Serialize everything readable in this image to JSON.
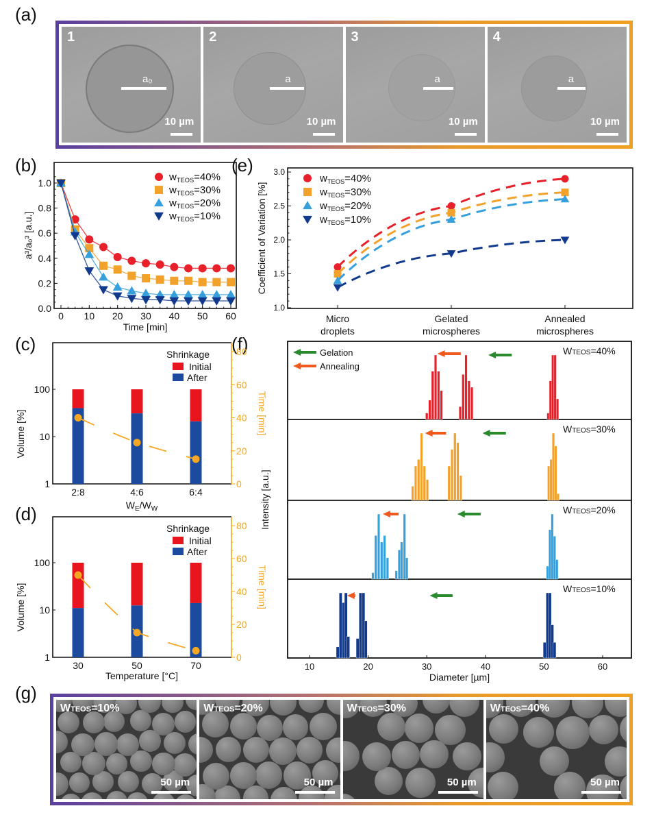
{
  "figure": {
    "panel_labels": {
      "a": "(a)",
      "b": "(b)",
      "c": "(c)",
      "d": "(d)",
      "e": "(e)",
      "f": "(f)",
      "g": "(g)"
    }
  },
  "panel_a": {
    "images": [
      {
        "index": "1",
        "radius_label": "a₀",
        "scale_label": "10 µm"
      },
      {
        "index": "2",
        "radius_label": "a",
        "scale_label": "10 µm"
      },
      {
        "index": "3",
        "radius_label": "a",
        "scale_label": "10 µm"
      },
      {
        "index": "4",
        "radius_label": "a",
        "scale_label": "10 µm"
      }
    ]
  },
  "panel_g": {
    "images": [
      {
        "label_w": "W",
        "label_sub": "TEOS",
        "label_val": "=10%",
        "scale_label": "50 µm"
      },
      {
        "label_w": "W",
        "label_sub": "TEOS",
        "label_val": "=20%",
        "scale_label": "50 µm"
      },
      {
        "label_w": "W",
        "label_sub": "TEOS",
        "label_val": "=30%",
        "scale_label": "50 µm"
      },
      {
        "label_w": "W",
        "label_sub": "TEOS",
        "label_val": "=40%",
        "scale_label": "50 µm"
      }
    ]
  },
  "colors": {
    "w40": "#e8202a",
    "w30": "#f2a22a",
    "w20": "#36a0dc",
    "w10": "#123a8c",
    "initial": "#e8141e",
    "after": "#1b4a9e",
    "time": "#f5a623",
    "gelation_arrow": "#2a8a2e",
    "annealing_arrow": "#f05a1e"
  },
  "chart_data": [
    {
      "id": "b",
      "type": "scatter",
      "title": "",
      "xlabel": "Time [min]",
      "ylabel": "a³/a₀³ [a.u.]",
      "xlim": [
        -2,
        62
      ],
      "ylim": [
        0,
        1.1
      ],
      "xticks": [
        0,
        10,
        20,
        30,
        40,
        50,
        60
      ],
      "yticks": [
        "0.0",
        "0.2",
        "0.4",
        "0.6",
        "0.8",
        "1.0"
      ],
      "legend_position": "top-right",
      "x": [
        0,
        5,
        10,
        15,
        20,
        25,
        30,
        35,
        40,
        45,
        50,
        55,
        60
      ],
      "series": [
        {
          "name": "W_TEOS=40%",
          "name_w": "w",
          "name_sub": "TEOS",
          "name_val": "=40%",
          "marker": "circle",
          "color_key": "w40",
          "values": [
            1.0,
            0.71,
            0.55,
            0.49,
            0.41,
            0.38,
            0.36,
            0.35,
            0.33,
            0.32,
            0.32,
            0.32,
            0.32
          ]
        },
        {
          "name": "W_TEOS=30%",
          "name_w": "w",
          "name_sub": "TEOS",
          "name_val": "=30%",
          "marker": "square",
          "color_key": "w30",
          "values": [
            1.0,
            0.63,
            0.48,
            0.34,
            0.31,
            0.26,
            0.24,
            0.23,
            0.22,
            0.22,
            0.21,
            0.21,
            0.21
          ]
        },
        {
          "name": "W_TEOS=20%",
          "name_w": "w",
          "name_sub": "TEOS",
          "name_val": "=20%",
          "marker": "triangle-up",
          "color_key": "w20",
          "values": [
            1.0,
            0.61,
            0.43,
            0.25,
            0.17,
            0.14,
            0.12,
            0.11,
            0.11,
            0.11,
            0.11,
            0.11,
            0.11
          ]
        },
        {
          "name": "W_TEOS=10%",
          "name_w": "w",
          "name_sub": "TEOS",
          "name_val": "=10%",
          "marker": "triangle-down",
          "color_key": "w10",
          "values": [
            1.0,
            0.58,
            0.3,
            0.15,
            0.1,
            0.08,
            0.07,
            0.07,
            0.06,
            0.06,
            0.06,
            0.06,
            0.06
          ]
        }
      ],
      "grid": false
    },
    {
      "id": "c",
      "type": "bar",
      "title": "",
      "xlabel": "W_E/W_W",
      "xlabel_main": "W",
      "xlabel_sub1": "E",
      "xlabel_mid": "/W",
      "xlabel_sub2": "W",
      "ylabel": "Volume [%]",
      "ylabel_right": "Time [min]",
      "yscale": "log",
      "ylim": [
        1,
        1000
      ],
      "yticks": [
        "1",
        "10",
        "100"
      ],
      "y2lim": [
        0,
        84
      ],
      "y2ticks": [
        0,
        20,
        40,
        60,
        80
      ],
      "categories": [
        "2:8",
        "4:6",
        "6:4"
      ],
      "legend_title": "Shrinkage",
      "legend_position": "top-right",
      "series": [
        {
          "name": "Initial",
          "color_key": "initial",
          "values": [
            100,
            100,
            100
          ]
        },
        {
          "name": "After",
          "color_key": "after",
          "values": [
            40,
            31,
            21
          ]
        }
      ],
      "time_series": {
        "name": "Time",
        "color_key": "time",
        "values": [
          40,
          25,
          15
        ]
      },
      "grid": false
    },
    {
      "id": "d",
      "type": "bar",
      "title": "",
      "xlabel": "Temperature [°C]",
      "ylabel": "Volume [%]",
      "ylabel_right": "Time [min]",
      "yscale": "log",
      "ylim": [
        1,
        1000
      ],
      "yticks": [
        "1",
        "10",
        "100"
      ],
      "y2lim": [
        0,
        84
      ],
      "y2ticks": [
        0,
        20,
        40,
        60,
        80
      ],
      "categories": [
        "30",
        "50",
        "70"
      ],
      "legend_title": "Shrinkage",
      "legend_position": "top-right",
      "series": [
        {
          "name": "Initial",
          "color_key": "initial",
          "values": [
            100,
            100,
            100
          ]
        },
        {
          "name": "After",
          "color_key": "after",
          "values": [
            11,
            12.5,
            14
          ]
        }
      ],
      "time_series": {
        "name": "Time",
        "color_key": "time",
        "values": [
          50,
          15,
          4
        ]
      },
      "grid": false
    },
    {
      "id": "e",
      "type": "line",
      "title": "",
      "xlabel": "",
      "ylabel": "Coefficient of Variation [%]",
      "ylim": [
        1.0,
        3.05
      ],
      "yticks": [
        "1.0",
        "1.5",
        "2.0",
        "2.5",
        "3.0"
      ],
      "categories": [
        [
          "Micro",
          "droplets"
        ],
        [
          "Gelated",
          "microspheres"
        ],
        [
          "Annealed",
          "microspheres"
        ]
      ],
      "legend_position": "top-left",
      "series": [
        {
          "name": "W_TEOS=40%",
          "name_w": "w",
          "name_sub": "TEOS",
          "name_val": "=40%",
          "marker": "circle",
          "color_key": "w40",
          "values": [
            1.6,
            2.5,
            2.9
          ]
        },
        {
          "name": "W_TEOS=30%",
          "name_w": "w",
          "name_sub": "TEOS",
          "name_val": "=30%",
          "marker": "square",
          "color_key": "w30",
          "values": [
            1.5,
            2.4,
            2.7
          ]
        },
        {
          "name": "W_TEOS=20%",
          "name_w": "w",
          "name_sub": "TEOS",
          "name_val": "=20%",
          "marker": "triangle-up",
          "color_key": "w20",
          "values": [
            1.4,
            2.3,
            2.6
          ]
        },
        {
          "name": "W_TEOS=10%",
          "name_w": "w",
          "name_sub": "TEOS",
          "name_val": "=10%",
          "marker": "triangle-down",
          "color_key": "w10",
          "values": [
            1.3,
            1.8,
            2.0
          ]
        }
      ],
      "line_style": "dashed",
      "grid": false
    },
    {
      "id": "f",
      "type": "bar",
      "title": "",
      "xlabel": "Diameter [µm]",
      "ylabel": "Intensity [a.u.]",
      "xlim": [
        6.2,
        65.2
      ],
      "xticks": [
        10,
        20,
        30,
        40,
        50,
        60
      ],
      "legend": [
        {
          "name": "Gelation",
          "color_key": "gelation_arrow"
        },
        {
          "name": "Annealing",
          "color_key": "annealing_arrow"
        }
      ],
      "legend_position": "top-left",
      "panels": [
        {
          "label_w": "W",
          "label_sub": "TEOS",
          "label_val": "=40%",
          "color_key": "w40",
          "bar_width": 0.42,
          "gelation_arrow": [
            44.5,
            40.5
          ],
          "annealing_arrow": [
            35.8,
            31.8
          ],
          "bars": [
            [
              30.0,
              0.1
            ],
            [
              30.5,
              0.3
            ],
            [
              31.0,
              0.75
            ],
            [
              31.5,
              1.0
            ],
            [
              32.0,
              0.75
            ],
            [
              32.5,
              0.45
            ],
            [
              35.7,
              0.2
            ],
            [
              36.2,
              0.7
            ],
            [
              36.7,
              1.0
            ],
            [
              37.2,
              0.6
            ],
            [
              37.7,
              0.5
            ],
            [
              50.7,
              0.1
            ],
            [
              51.1,
              0.6
            ],
            [
              51.5,
              1.0
            ],
            [
              51.9,
              1.0
            ],
            [
              52.3,
              0.32
            ]
          ]
        },
        {
          "label_w": "W",
          "label_sub": "TEOS",
          "label_val": "=30%",
          "color_key": "w30",
          "bar_width": 0.42,
          "gelation_arrow": [
            43.5,
            39.5
          ],
          "annealing_arrow": [
            33.3,
            29.7
          ],
          "bars": [
            [
              27.6,
              0.21
            ],
            [
              28.1,
              0.51
            ],
            [
              28.6,
              0.61
            ],
            [
              29.1,
              1.0
            ],
            [
              29.6,
              0.51
            ],
            [
              30.1,
              0.31
            ],
            [
              33.8,
              0.51
            ],
            [
              34.3,
              0.76
            ],
            [
              34.8,
              1.0
            ],
            [
              35.3,
              0.86
            ],
            [
              35.8,
              0.37
            ],
            [
              50.8,
              0.51
            ],
            [
              51.2,
              0.61
            ],
            [
              51.6,
              1.0
            ],
            [
              52.0,
              0.81
            ],
            [
              52.4,
              0.1
            ]
          ]
        },
        {
          "label_w": "W",
          "label_sub": "TEOS",
          "label_val": "=20%",
          "color_key": "w20",
          "bar_width": 0.42,
          "gelation_arrow": [
            39.2,
            35.2
          ],
          "annealing_arrow": [
            25.2,
            22.5
          ],
          "bars": [
            [
              20.8,
              0.1
            ],
            [
              21.3,
              0.67
            ],
            [
              21.8,
              1.0
            ],
            [
              22.3,
              0.57
            ],
            [
              22.8,
              0.67
            ],
            [
              23.3,
              0.33
            ],
            [
              24.8,
              0.13
            ],
            [
              25.3,
              0.45
            ],
            [
              25.7,
              0.57
            ],
            [
              26.2,
              1.0
            ],
            [
              26.6,
              0.33
            ],
            [
              50.6,
              0.2
            ],
            [
              51.0,
              0.76
            ],
            [
              51.4,
              1.0
            ],
            [
              51.8,
              0.66
            ],
            [
              52.2,
              0.3
            ]
          ]
        },
        {
          "label_w": "W",
          "label_sub": "TEOS",
          "label_val": "=10%",
          "color_key": "w10",
          "bar_width": 0.5,
          "gelation_arrow": [
            34.4,
            30.5
          ],
          "annealing_arrow": [
            17.8,
            16.4
          ],
          "bars": [
            [
              14.8,
              0.17
            ],
            [
              15.3,
              1.0
            ],
            [
              15.8,
              0.85
            ],
            [
              16.2,
              1.0
            ],
            [
              16.6,
              0.33
            ],
            [
              18.2,
              0.3
            ],
            [
              18.7,
              1.0
            ],
            [
              19.2,
              1.0
            ],
            [
              19.6,
              0.57
            ],
            [
              50.1,
              0.24
            ],
            [
              50.6,
              1.0
            ],
            [
              51.0,
              1.0
            ],
            [
              51.4,
              0.51
            ],
            [
              51.8,
              0.24
            ]
          ]
        }
      ],
      "grid": false
    }
  ]
}
